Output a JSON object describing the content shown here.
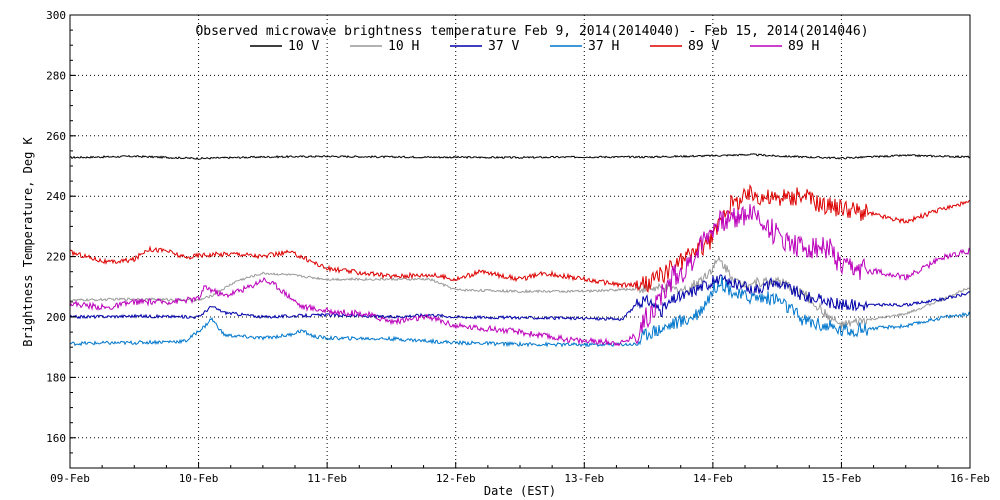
{
  "chart_data": {
    "type": "line",
    "title": "Observed microwave brightness temperature Feb  9, 2014(2014040) - Feb 15, 2014(2014046)",
    "xlabel": "Date (EST)",
    "ylabel": "Brightness Temperature, Deg K",
    "ylim": [
      150,
      300
    ],
    "yticks": [
      160,
      180,
      200,
      220,
      240,
      260,
      280,
      300
    ],
    "xlim": [
      "09-Feb",
      "16-Feb"
    ],
    "xticks": [
      "09-Feb",
      "10-Feb",
      "11-Feb",
      "12-Feb",
      "13-Feb",
      "14-Feb",
      "15-Feb",
      "16-Feb"
    ],
    "x_unit": "day",
    "grid": true,
    "legend_position": "top",
    "series": [
      {
        "name": "10 V",
        "color": "#000000",
        "points": [
          [
            0,
            252.8
          ],
          [
            0.5,
            253.2
          ],
          [
            1,
            252.5
          ],
          [
            1.5,
            253
          ],
          [
            2,
            253.2
          ],
          [
            2.5,
            253
          ],
          [
            3,
            252.9
          ],
          [
            3.5,
            252.8
          ],
          [
            4,
            253
          ],
          [
            4.5,
            253
          ],
          [
            5,
            253.4
          ],
          [
            5.3,
            253.8
          ],
          [
            5.5,
            253.3
          ],
          [
            6,
            252.6
          ],
          [
            6.5,
            253.5
          ],
          [
            7,
            253
          ]
        ],
        "noise": 0.3
      },
      {
        "name": "10 H",
        "color": "#999999",
        "points": [
          [
            0,
            205.5
          ],
          [
            0.5,
            206
          ],
          [
            1,
            205.5
          ],
          [
            1.1,
            207
          ],
          [
            1.3,
            212
          ],
          [
            1.5,
            214.5
          ],
          [
            1.7,
            214
          ],
          [
            2,
            212.5
          ],
          [
            2.5,
            212.5
          ],
          [
            2.8,
            212.5
          ],
          [
            3,
            209
          ],
          [
            3.5,
            208.5
          ],
          [
            4,
            208.5
          ],
          [
            4.5,
            209.5
          ],
          [
            4.8,
            209
          ],
          [
            4.95,
            214
          ],
          [
            5.05,
            219
          ],
          [
            5.2,
            211
          ],
          [
            5.5,
            212
          ],
          [
            5.7,
            208
          ],
          [
            5.9,
            200
          ],
          [
            6,
            197
          ],
          [
            6.2,
            199
          ],
          [
            6.5,
            201
          ],
          [
            6.8,
            206
          ],
          [
            7,
            210
          ]
        ],
        "noise": 0.4
      },
      {
        "name": "37 V",
        "color": "#0000aa",
        "points": [
          [
            0,
            200
          ],
          [
            0.5,
            200.3
          ],
          [
            1,
            200
          ],
          [
            1.1,
            203.5
          ],
          [
            1.2,
            201.5
          ],
          [
            1.5,
            200
          ],
          [
            2,
            200.7
          ],
          [
            2.5,
            200
          ],
          [
            2.8,
            200.8
          ],
          [
            3,
            200
          ],
          [
            3.5,
            199.8
          ],
          [
            4,
            199.5
          ],
          [
            4.3,
            199.3
          ],
          [
            4.4,
            204
          ],
          [
            4.5,
            205.5
          ],
          [
            4.6,
            202
          ],
          [
            4.7,
            206
          ],
          [
            4.8,
            207.5
          ],
          [
            4.9,
            210
          ],
          [
            5.05,
            212.5
          ],
          [
            5.3,
            209
          ],
          [
            5.5,
            211.5
          ],
          [
            5.7,
            207
          ],
          [
            6,
            204
          ],
          [
            6.5,
            204
          ],
          [
            6.8,
            206
          ],
          [
            7,
            208
          ]
        ],
        "noise": 0.5
      },
      {
        "name": "37 H",
        "color": "#0077cc",
        "points": [
          [
            0,
            191.2
          ],
          [
            0.5,
            191.5
          ],
          [
            0.9,
            192
          ],
          [
            1.05,
            197
          ],
          [
            1.1,
            199.5
          ],
          [
            1.2,
            194
          ],
          [
            1.5,
            193
          ],
          [
            1.7,
            194
          ],
          [
            1.8,
            195.5
          ],
          [
            1.9,
            193.5
          ],
          [
            2,
            193
          ],
          [
            2.5,
            192.8
          ],
          [
            3,
            191.5
          ],
          [
            3.5,
            191
          ],
          [
            4,
            190.8
          ],
          [
            4.4,
            191
          ],
          [
            4.5,
            195
          ],
          [
            4.6,
            196
          ],
          [
            4.7,
            198
          ],
          [
            4.8,
            199
          ],
          [
            4.9,
            202
          ],
          [
            5.05,
            212
          ],
          [
            5.2,
            207
          ],
          [
            5.5,
            206
          ],
          [
            5.7,
            199
          ],
          [
            6,
            195.5
          ],
          [
            6.5,
            197
          ],
          [
            6.8,
            200
          ],
          [
            7,
            201
          ]
        ],
        "noise": 0.6
      },
      {
        "name": "89 V",
        "color": "#dd0000",
        "points": [
          [
            0,
            221.5
          ],
          [
            0.3,
            218
          ],
          [
            0.5,
            219
          ],
          [
            0.6,
            222.5
          ],
          [
            0.75,
            222
          ],
          [
            0.9,
            219.5
          ],
          [
            1,
            220.5
          ],
          [
            1.3,
            221
          ],
          [
            1.5,
            220
          ],
          [
            1.7,
            221.5
          ],
          [
            1.8,
            220
          ],
          [
            2,
            216
          ],
          [
            2.3,
            214.5
          ],
          [
            2.5,
            213.5
          ],
          [
            2.8,
            214
          ],
          [
            3,
            212.5
          ],
          [
            3.2,
            215
          ],
          [
            3.5,
            212.5
          ],
          [
            3.7,
            214.5
          ],
          [
            4,
            212.5
          ],
          [
            4.3,
            210.5
          ],
          [
            4.5,
            211
          ],
          [
            4.6,
            214
          ],
          [
            4.8,
            220
          ],
          [
            5,
            226
          ],
          [
            5.1,
            236
          ],
          [
            5.3,
            241
          ],
          [
            5.5,
            239
          ],
          [
            5.7,
            240
          ],
          [
            5.9,
            236.5
          ],
          [
            6,
            236.5
          ],
          [
            6.2,
            234.5
          ],
          [
            6.5,
            231.5
          ],
          [
            6.8,
            236
          ],
          [
            7,
            238
          ]
        ],
        "noise": 0.8
      },
      {
        "name": "89 H",
        "color": "#bb00bb",
        "points": [
          [
            0,
            204.5
          ],
          [
            0.3,
            203
          ],
          [
            0.5,
            205
          ],
          [
            0.75,
            205
          ],
          [
            1,
            206
          ],
          [
            1.05,
            210
          ],
          [
            1.2,
            207
          ],
          [
            1.4,
            210
          ],
          [
            1.5,
            212.5
          ],
          [
            1.6,
            210.5
          ],
          [
            1.8,
            203.5
          ],
          [
            2,
            202
          ],
          [
            2.3,
            201
          ],
          [
            2.5,
            198.5
          ],
          [
            2.8,
            200
          ],
          [
            3,
            197
          ],
          [
            3.3,
            196
          ],
          [
            3.5,
            195
          ],
          [
            3.8,
            193
          ],
          [
            4,
            192
          ],
          [
            4.3,
            191.5
          ],
          [
            4.4,
            194
          ],
          [
            4.5,
            201
          ],
          [
            4.6,
            207
          ],
          [
            4.7,
            214
          ],
          [
            4.8,
            216
          ],
          [
            4.9,
            224
          ],
          [
            5,
            230
          ],
          [
            5.1,
            232
          ],
          [
            5.3,
            235
          ],
          [
            5.5,
            227
          ],
          [
            5.7,
            223
          ],
          [
            5.9,
            223
          ],
          [
            6,
            216
          ],
          [
            6.3,
            215
          ],
          [
            6.5,
            213
          ],
          [
            6.8,
            220
          ],
          [
            7,
            222
          ]
        ],
        "noise": 1.0
      }
    ]
  }
}
